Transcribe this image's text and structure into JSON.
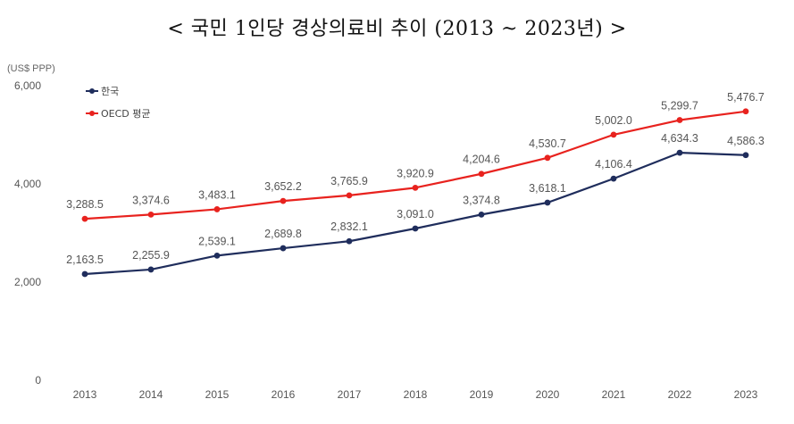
{
  "title": "< 국민 1인당 경상의료비 추이 (2013 ~ 2023년) >",
  "chart_data": {
    "type": "line",
    "unit_label": "(US$ PPP)",
    "x": [
      "2013",
      "2014",
      "2015",
      "2016",
      "2017",
      "2018",
      "2019",
      "2020",
      "2021",
      "2022",
      "2023"
    ],
    "ylim": [
      0,
      6000
    ],
    "yticks": [
      0,
      2000,
      4000,
      6000
    ],
    "ytick_labels": [
      "0",
      "2,000",
      "4,000",
      "6,000"
    ],
    "grid": false,
    "legend_position": "top-left",
    "series": [
      {
        "name": "한국",
        "color": "#1f2d5c",
        "values": [
          2163.5,
          2255.9,
          2539.1,
          2689.8,
          2832.1,
          3091.0,
          3374.8,
          3618.1,
          4106.4,
          4634.3,
          4586.3
        ],
        "labels": [
          "2,163.5",
          "2,255.9",
          "2,539.1",
          "2,689.8",
          "2,832.1",
          "3,091.0",
          "3,374.8",
          "3,618.1",
          "4,106.4",
          "4,634.3",
          "4,586.3"
        ]
      },
      {
        "name": "OECD 평균",
        "color": "#e8221e",
        "values": [
          3288.5,
          3374.6,
          3483.1,
          3652.2,
          3765.9,
          3920.9,
          4204.6,
          4530.7,
          5002.0,
          5299.7,
          5476.7
        ],
        "labels": [
          "3,288.5",
          "3,374.6",
          "3,483.1",
          "3,652.2",
          "3,765.9",
          "3,920.9",
          "4,204.6",
          "4,530.7",
          "5,002.0",
          "5,299.7",
          "5,476.7"
        ]
      }
    ]
  }
}
